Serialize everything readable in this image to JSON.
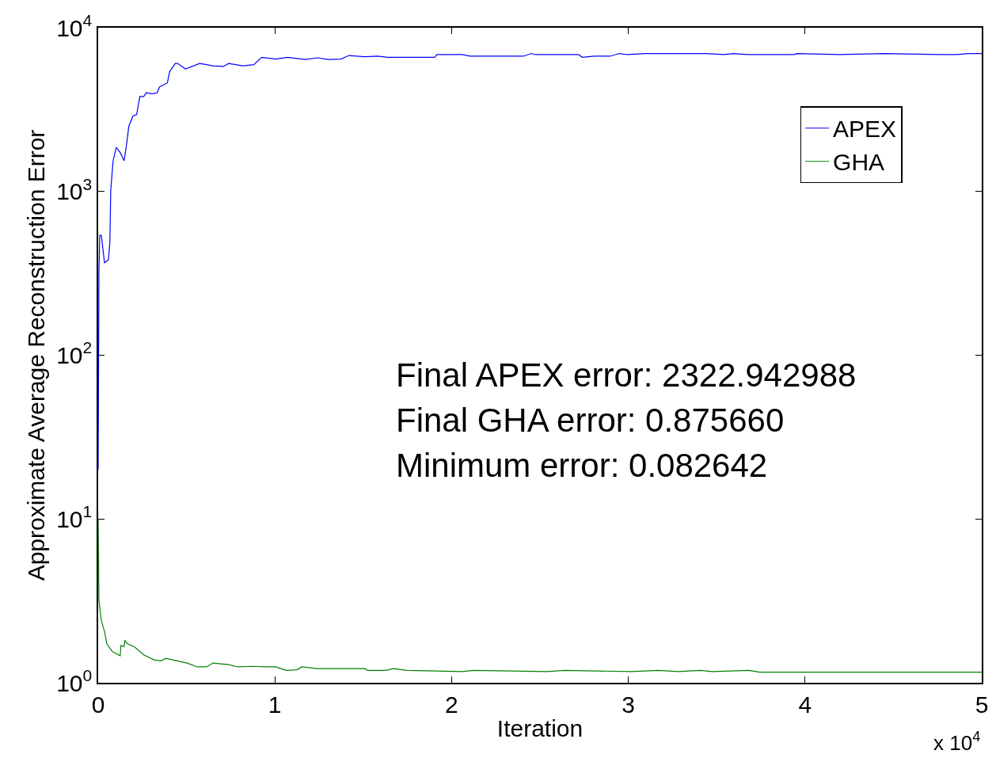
{
  "chart_data": {
    "type": "line",
    "xlabel": "Iteration",
    "ylabel": "Approximate Average Reconstruction Error",
    "log": "y",
    "legend": "top right",
    "marker": "none",
    "line_style": "solid",
    "xlim": [
      0,
      5
    ],
    "xticks": [
      0,
      1,
      2,
      3,
      4,
      5
    ],
    "ylim": [
      1,
      10000
    ],
    "yticks": [
      {
        "value": 1,
        "label": "10$^{0}$"
      },
      {
        "value": 10,
        "label": "10$^{1}$"
      },
      {
        "value": 100,
        "label": "10$^{2}$"
      },
      {
        "value": 1000,
        "label": "10$^{3}$"
      },
      {
        "value": 10000,
        "label": "10$^{4}$"
      }
    ],
    "annotations": [
      "x 10$^{4}$",
      "Final APEX error: 2322.942988",
      "Final GHA error: 0.875660",
      "Minimum error: 0.082642"
    ],
    "series": [
      {
        "name": "APEX",
        "color": "#0000ff",
        "x": [
          0,
          0.0044,
          0.0089,
          0.0178,
          0.0311,
          0.0356,
          0.0578,
          0.066,
          0.0712,
          0.0845,
          0.1023,
          0.1245,
          0.1468,
          0.1601,
          0.1735,
          0.1957,
          0.218,
          0.2357,
          0.258,
          0.2713,
          0.3069,
          0.3336,
          0.347,
          0.3692,
          0.3914,
          0.4048,
          0.4359,
          0.4492,
          0.4937,
          0.5738,
          0.6494,
          0.7073,
          0.7384,
          0.8184,
          0.8807,
          0.9252,
          1.0052,
          1.072,
          1.1698,
          1.241,
          1.3033,
          1.3745,
          1.4189,
          1.5079,
          1.5835,
          1.637,
          1.904,
          1.917,
          1.984,
          2.06,
          2.104,
          2.406,
          2.451,
          2.473,
          2.718,
          2.74,
          2.807,
          2.896,
          2.949,
          2.994,
          3.096,
          3.438,
          3.54,
          3.594,
          3.674,
          3.941,
          3.95,
          4.194,
          4.452,
          4.764,
          4.862,
          4.92,
          5
        ],
        "values": [
          20,
          324,
          540,
          540,
          408,
          366,
          383,
          483,
          1020,
          1540,
          1860,
          1730,
          1540,
          1915,
          2500,
          2880,
          2950,
          3800,
          3800,
          4000,
          3950,
          4000,
          4350,
          4470,
          4600,
          5400,
          6050,
          6050,
          5600,
          6050,
          5850,
          5800,
          6050,
          5850,
          5950,
          6600,
          6430,
          6600,
          6400,
          6550,
          6400,
          6430,
          6770,
          6650,
          6700,
          6600,
          6600,
          6850,
          6850,
          6850,
          6700,
          6700,
          6960,
          6850,
          6850,
          6600,
          6700,
          6700,
          6960,
          6850,
          6960,
          6960,
          6850,
          6960,
          6850,
          6850,
          6960,
          6850,
          6960,
          6850,
          6850,
          6960,
          6960
        ]
      },
      {
        "name": "GHA",
        "color": "#008000",
        "x": [
          0,
          0.0044,
          0.0178,
          0.0356,
          0.049,
          0.08,
          0.1245,
          0.129,
          0.1468,
          0.1512,
          0.1645,
          0.2046,
          0.258,
          0.3158,
          0.3558,
          0.3825,
          0.5026,
          0.5604,
          0.6138,
          0.6494,
          0.7384,
          0.7918,
          0.8718,
          0.9474,
          1.0052,
          1.0631,
          1.1254,
          1.152,
          1.2366,
          1.5079,
          1.5257,
          1.628,
          1.6725,
          1.748,
          2.06,
          2.126,
          2.54,
          2.638,
          3.016,
          3.172,
          3.283,
          3.407,
          3.474,
          3.683,
          3.741,
          5
        ],
        "values": [
          10,
          3.2,
          2.4,
          2.06,
          1.73,
          1.55,
          1.46,
          1.69,
          1.66,
          1.82,
          1.73,
          1.66,
          1.48,
          1.38,
          1.36,
          1.41,
          1.32,
          1.25,
          1.25,
          1.32,
          1.29,
          1.25,
          1.26,
          1.25,
          1.25,
          1.19,
          1.2,
          1.25,
          1.22,
          1.22,
          1.19,
          1.19,
          1.22,
          1.19,
          1.17,
          1.19,
          1.17,
          1.19,
          1.17,
          1.19,
          1.17,
          1.19,
          1.17,
          1.19,
          1.16,
          1.16
        ]
      }
    ]
  }
}
